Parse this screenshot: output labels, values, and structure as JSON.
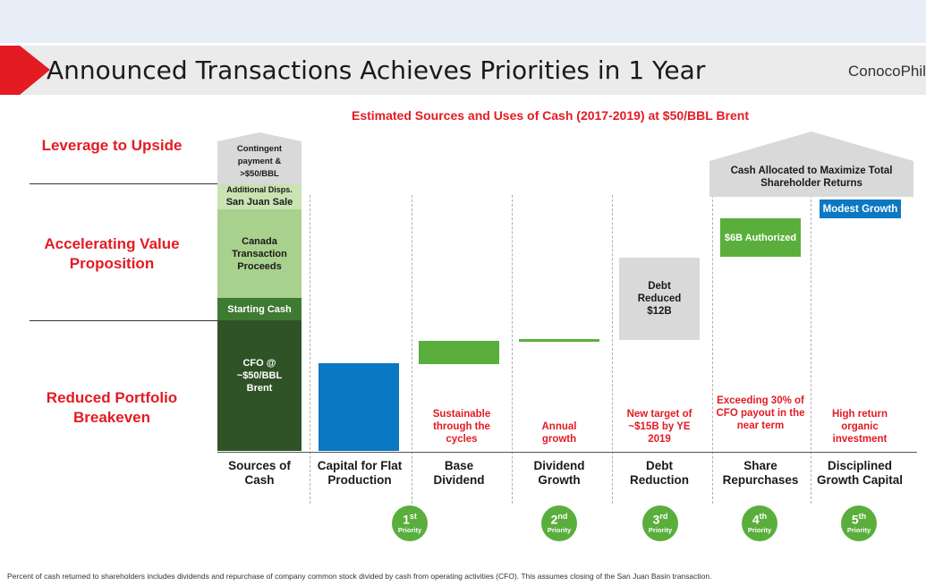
{
  "title": "Announced Transactions Achieves Priorities in 1 Year",
  "logo_text": "ConocoPhilli",
  "subtitle": "Estimated Sources and Uses of Cash (2017-2019) at $50/BBL Brent",
  "left_labels": {
    "leverage": "Leverage to Upside",
    "accelerating": "Accelerating Value Proposition",
    "reduced": "Reduced Portfolio Breakeven"
  },
  "sources": {
    "contingent": "Contingent payment & >$50/BBL",
    "additional": "Additional Disps.",
    "san_juan": "San Juan Sale",
    "canada": "Canada Transaction Proceeds",
    "starting_cash": "Starting Cash",
    "cfo": "CFO @ ~$50/BBL Brent"
  },
  "shareholder_header": "Cash Allocated to Maximize Total Shareholder Returns",
  "bar_labels": {
    "debt": "Debt Reduced $12B",
    "repurchase": "$6B Authorized",
    "growth": "Modest Growth"
  },
  "notes": {
    "base_dividend": "Sustainable through the cycles",
    "dividend_growth": "Annual growth",
    "debt": "New target of ~$15B by YE 2019",
    "repurchases": "Exceeding 30% of CFO payout in the near term",
    "growth": "High return organic investment"
  },
  "categories": {
    "sources": "Sources of Cash",
    "capital": "Capital for Flat Production",
    "base_dividend": "Base Dividend",
    "dividend_growth": "Dividend Growth",
    "debt": "Debt Reduction",
    "repurchases": "Share Repurchases",
    "growth": "Disciplined Growth Capital"
  },
  "priorities": [
    {
      "rank": "1",
      "suffix": "st",
      "label": "Priority"
    },
    {
      "rank": "2",
      "suffix": "nd",
      "label": "Priority"
    },
    {
      "rank": "3",
      "suffix": "rd",
      "label": "Priority"
    },
    {
      "rank": "4",
      "suffix": "th",
      "label": "Priority"
    },
    {
      "rank": "5",
      "suffix": "th",
      "label": "Priority"
    }
  ],
  "footnote": "Percent of cash returned to shareholders includes dividends and repurchase of company common stock divided by cash from operating activities (CFO). This assumes closing of the San Juan Basin transaction.",
  "colors": {
    "accent_red": "#e31b23",
    "dark_green": "#2f5326",
    "mid_green": "#3e7a32",
    "light_green": "#a9d18e",
    "pale_green": "#c9e3b3",
    "bright_green": "#5aae3c",
    "blue": "#0a78c2",
    "gray": "#d9d9d9"
  }
}
